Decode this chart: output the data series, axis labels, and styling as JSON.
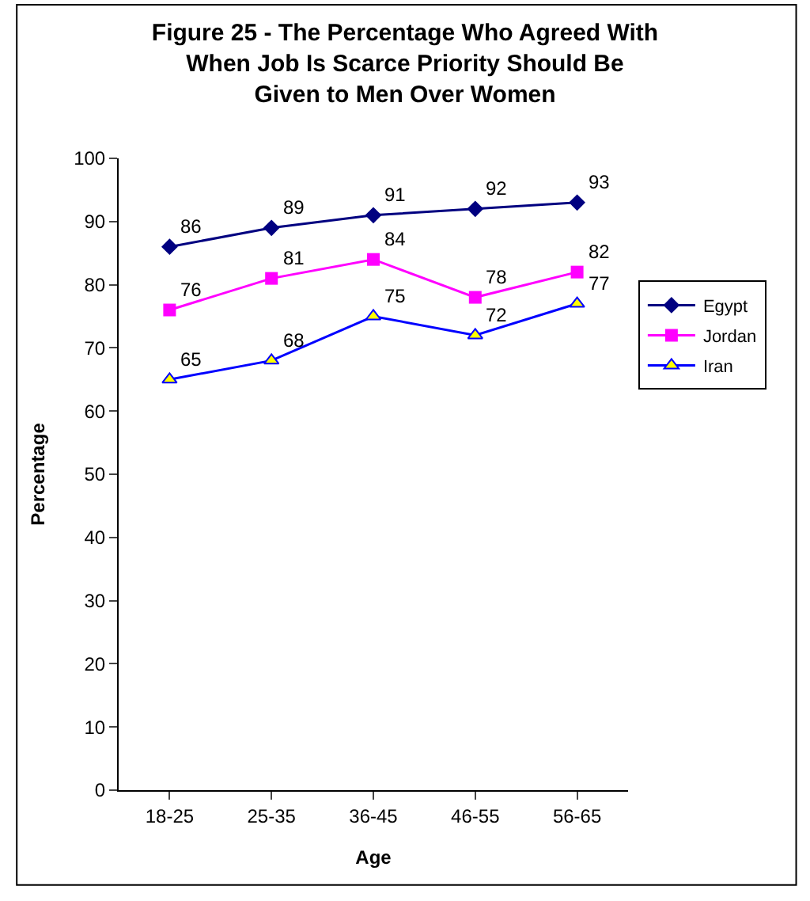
{
  "chart_data": {
    "type": "line",
    "title": "Figure 25 - The Percentage Who Agreed With When Job Is Scarce Priority Should Be Given to Men Over Women",
    "xlabel": "Age",
    "ylabel": "Percentage",
    "categories": [
      "18-25",
      "25-35",
      "36-45",
      "46-55",
      "56-65"
    ],
    "series": [
      {
        "name": "Egypt",
        "color": "#000080",
        "marker": "diamond",
        "values": [
          86,
          89,
          91,
          92,
          93
        ]
      },
      {
        "name": "Jordan",
        "color": "#ff00ff",
        "marker": "square",
        "values": [
          76,
          81,
          84,
          78,
          82
        ]
      },
      {
        "name": "Iran",
        "color": "#0000ff",
        "marker": "triangle",
        "colors": [
          "#ffff00",
          "#ffff00",
          "#ffff00",
          "#ffff00",
          "#ffff00"
        ],
        "values": [
          65,
          68,
          75,
          72,
          77
        ]
      }
    ],
    "ylim": [
      0,
      100
    ],
    "yticks": [
      0,
      10,
      20,
      30,
      40,
      50,
      60,
      70,
      80,
      90,
      100
    ],
    "data_labels": true,
    "legend": "right",
    "line_style": "solid"
  }
}
